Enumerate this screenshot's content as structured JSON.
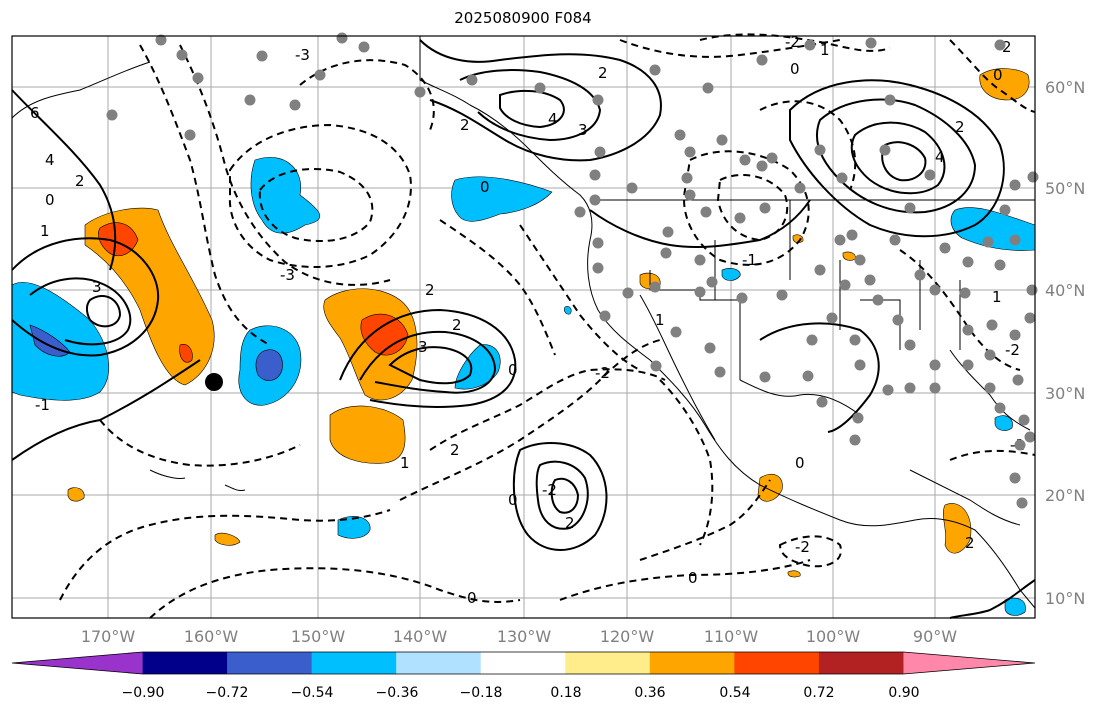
{
  "title": "2025080900 F084",
  "lon_labels": [
    "170°W",
    "160°W",
    "150°W",
    "140°W",
    "130°W",
    "120°W",
    "110°W",
    "100°W",
    "90°W"
  ],
  "lat_labels": [
    "60°N",
    "50°N",
    "40°N",
    "30°N",
    "20°N",
    "10°N"
  ],
  "colorbar": {
    "ticks": [
      "−0.90",
      "−0.72",
      "−0.54",
      "−0.36",
      "−0.18",
      "0.18",
      "0.36",
      "0.54",
      "0.72",
      "0.90"
    ],
    "colors": [
      "#9933cc",
      "#00008b",
      "#3a5fcd",
      "#00bfff",
      "#b0e2ff",
      "#ffffff",
      "#ffec8b",
      "#ffa500",
      "#ff4500",
      "#b22222",
      "#ff88aa"
    ]
  },
  "contour_labels": [
    "6",
    "4",
    "2",
    "0",
    "1",
    "3",
    "-1",
    "-3",
    "2",
    "3",
    "2",
    "0",
    "-3",
    "2",
    "3",
    "4",
    "2",
    "0",
    "-2",
    "1",
    "4",
    "2",
    "0",
    "-2",
    "1",
    "2",
    "0",
    "-2",
    "-1",
    "1",
    "2",
    "0",
    "0",
    "-2",
    "1",
    "0",
    "2",
    "-2",
    "-1",
    "0",
    "2"
  ]
}
